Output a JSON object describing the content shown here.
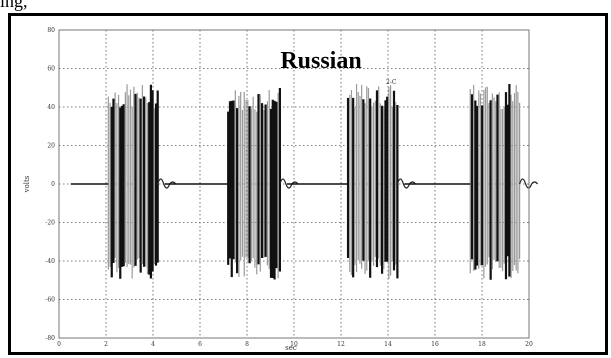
{
  "page": {
    "top_fragment": "ing,"
  },
  "chart_data": {
    "type": "line",
    "title": "Russian",
    "xlabel": "sec",
    "ylabel": "volts",
    "xlim": [
      0,
      20
    ],
    "ylim": [
      -80,
      80
    ],
    "x_ticks": [
      "0",
      "2",
      "4",
      "6",
      "8",
      "10",
      "12",
      "14",
      "16",
      "18",
      "20"
    ],
    "y_ticks": [
      "80",
      "60",
      "40",
      "20",
      "0",
      "-20",
      "-40",
      "-60",
      "-80"
    ],
    "grid": true,
    "annotations": [
      "2-C"
    ],
    "bursts": [
      {
        "start": 2.1,
        "end": 4.2,
        "peak": 52,
        "trough": -50
      },
      {
        "start": 7.2,
        "end": 9.4,
        "peak": 50,
        "trough": -50
      },
      {
        "start": 12.3,
        "end": 14.4,
        "peak": 52,
        "trough": -50
      },
      {
        "start": 17.5,
        "end": 19.6,
        "peak": 52,
        "trough": -50
      }
    ],
    "series": [
      {
        "values": [
          0,
          0,
          0,
          0,
          0
        ]
      }
    ]
  }
}
